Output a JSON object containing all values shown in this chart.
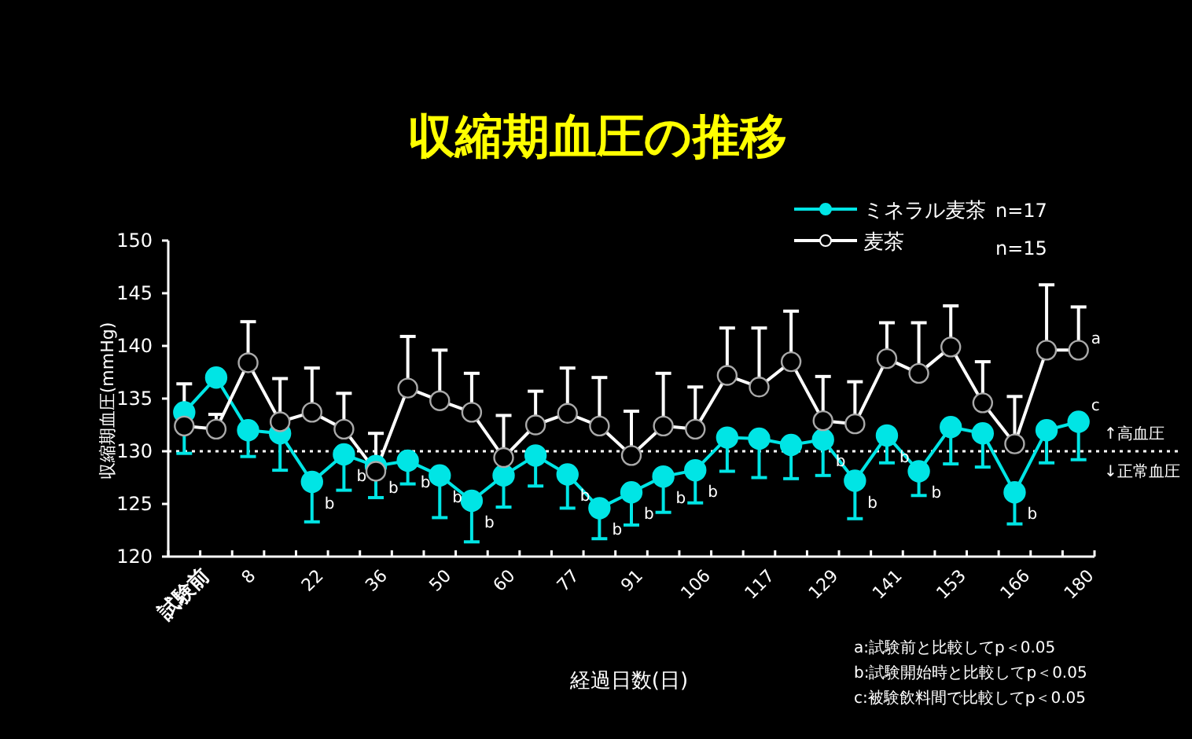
{
  "chart_data": {
    "type": "line",
    "title": "収縮期血圧の推移",
    "xlabel": "経過日数(日)",
    "ylabel": "収縮期血圧(mmHg)",
    "categories": [
      "試験前",
      null,
      "8",
      null,
      "22",
      null,
      "36",
      null,
      "50",
      null,
      "60",
      null,
      "77",
      null,
      "91",
      null,
      "106",
      null,
      "117",
      null,
      "129",
      null,
      "141",
      null,
      "153",
      null,
      "166",
      null,
      "180"
    ],
    "ylim": [
      120,
      150
    ],
    "yticks": [
      120,
      125,
      130,
      135,
      140,
      145,
      150
    ],
    "grid": false,
    "legend": "top right",
    "marker": "circle",
    "line_style": "solid",
    "series": [
      {
        "name": "ミネラル麦茶",
        "color": "#00e5e5",
        "values": [
          133.7,
          137.0,
          132.0,
          131.7,
          127.1,
          129.7,
          128.6,
          129.1,
          127.7,
          125.3,
          127.7,
          129.6,
          127.8,
          124.6,
          126.1,
          127.6,
          128.2,
          131.3,
          131.2,
          130.6,
          131.1,
          127.2,
          131.5,
          128.1,
          132.3,
          131.7,
          126.1,
          132.0,
          132.8
        ],
        "errors": [
          [
            129.8,
            133.7
          ],
          null,
          [
            129.5,
            132.0
          ],
          [
            128.2,
            131.7
          ],
          [
            123.3,
            127.1
          ],
          [
            126.3,
            129.7
          ],
          [
            125.6,
            128.6
          ],
          [
            126.9,
            129.1
          ],
          [
            123.7,
            127.7
          ],
          [
            121.4,
            125.3
          ],
          [
            124.7,
            127.7
          ],
          [
            126.7,
            129.6
          ],
          [
            124.6,
            127.8
          ],
          [
            121.7,
            124.6
          ],
          [
            123.0,
            126.1
          ],
          [
            124.2,
            127.6
          ],
          [
            125.1,
            128.2
          ],
          [
            128.1,
            131.3
          ],
          [
            127.5,
            131.2
          ],
          [
            127.4,
            130.6
          ],
          [
            127.7,
            131.1
          ],
          [
            123.6,
            127.2
          ],
          [
            128.9,
            131.5
          ],
          [
            125.8,
            128.1
          ],
          [
            128.8,
            132.3
          ],
          [
            128.5,
            131.7
          ],
          [
            123.1,
            126.1
          ],
          [
            128.9,
            132.0
          ],
          [
            129.2,
            132.8
          ]
        ],
        "value_labels": [
          null,
          null,
          null,
          null,
          "b",
          "b",
          "b",
          "b",
          "b",
          "b",
          null,
          null,
          "b",
          "b",
          "b",
          "b",
          "b",
          null,
          null,
          null,
          "b",
          "b",
          "b",
          "b",
          null,
          null,
          "b",
          null,
          "c"
        ]
      },
      {
        "name": "麦茶",
        "color": "#ffffff",
        "values": [
          132.4,
          132.1,
          138.4,
          132.8,
          133.7,
          132.1,
          128.1,
          136.0,
          134.8,
          133.7,
          129.4,
          132.5,
          133.6,
          132.4,
          129.6,
          132.4,
          132.1,
          137.2,
          136.1,
          138.5,
          132.9,
          132.6,
          138.8,
          137.4,
          139.9,
          134.6,
          130.7,
          139.6,
          139.6
        ],
        "errors": [
          [
            132.4,
            136.4
          ],
          [
            132.1,
            133.5
          ],
          [
            138.4,
            142.3
          ],
          [
            132.8,
            136.9
          ],
          [
            133.7,
            137.9
          ],
          [
            132.1,
            135.5
          ],
          [
            128.1,
            131.7
          ],
          [
            136.0,
            140.9
          ],
          [
            134.8,
            139.6
          ],
          [
            133.7,
            137.4
          ],
          [
            129.4,
            133.4
          ],
          [
            132.5,
            135.7
          ],
          [
            133.6,
            137.9
          ],
          [
            132.4,
            137.0
          ],
          [
            129.6,
            133.8
          ],
          [
            132.4,
            137.4
          ],
          [
            132.1,
            136.1
          ],
          [
            137.2,
            141.7
          ],
          [
            136.1,
            141.7
          ],
          [
            138.5,
            143.3
          ],
          [
            132.9,
            137.1
          ],
          [
            132.6,
            136.6
          ],
          [
            138.8,
            142.2
          ],
          [
            137.4,
            142.2
          ],
          [
            139.9,
            143.8
          ],
          [
            134.6,
            138.5
          ],
          [
            130.7,
            135.2
          ],
          [
            139.6,
            145.8
          ],
          [
            139.6,
            143.7
          ]
        ],
        "value_labels": [
          null,
          null,
          null,
          null,
          null,
          null,
          null,
          null,
          null,
          null,
          null,
          null,
          null,
          null,
          null,
          null,
          null,
          null,
          null,
          null,
          null,
          null,
          null,
          null,
          null,
          null,
          null,
          null,
          "a"
        ]
      }
    ],
    "ref_lines": [
      {
        "axis": "y",
        "value": 130,
        "label": "↑高血圧",
        "color": "#ffffff",
        "line_style": "dotted"
      }
    ],
    "annotations": [
      "n=17",
      "n=15",
      {
        "text": "↓正常血圧",
        "y": 130
      },
      "a:試験前と比較してp＜0.05",
      "b:試験開始時と比較してp＜0.05",
      "c:被験飲料間で比較してp＜0.05"
    ]
  }
}
